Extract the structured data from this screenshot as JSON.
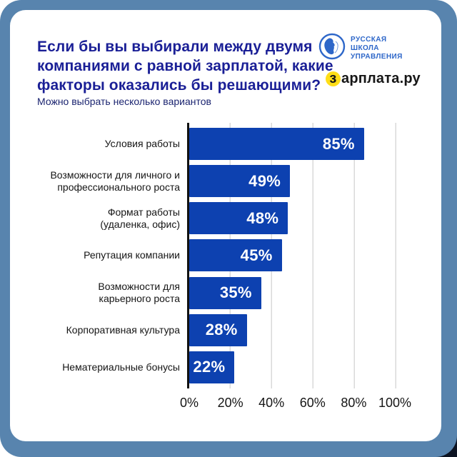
{
  "colors": {
    "frame_blue": "#5884ae",
    "shadow_dark": "#0c1322",
    "title_navy": "#1a1f96",
    "subtitle_navy": "#1b2470",
    "bar_blue": "#0d41b0",
    "rsu_blue": "#2e67c9",
    "yellow": "#ffde17",
    "grid": "#d9d9d9"
  },
  "header": {
    "title": "Если бы вы выбирали между двумя\nкомпаниями с равной зарплатой, какие\nфакторы оказались бы решающими?",
    "subtitle": "Можно выбрать несколько вариантов"
  },
  "logos": {
    "rsu": {
      "icon": "rsu-emblem-icon",
      "name_lines": "РУССКАЯ\nШКОЛА\nУПРАВЛЕНИЯ"
    },
    "zarplata": {
      "first_letter": "з",
      "rest": "арплата.ру"
    }
  },
  "chart_data": {
    "type": "bar",
    "orientation": "horizontal",
    "title": "Если бы вы выбирали между двумя компаниями с равной зарплатой, какие факторы оказались бы решающими?",
    "subtitle": "Можно выбрать несколько вариантов",
    "categories": [
      "Условия работы",
      "Возможности для личного и\nпрофессионального роста",
      "Формат работы\n(удаленка, офис)",
      "Репутация компании",
      "Возможности для\nкарьерного роста",
      "Корпоративная культура",
      "Нематериальные бонусы"
    ],
    "values": [
      85,
      49,
      48,
      45,
      35,
      28,
      22
    ],
    "value_labels": [
      "85%",
      "49%",
      "48%",
      "45%",
      "35%",
      "28%",
      "22%"
    ],
    "xlabel": "",
    "ylabel": "",
    "xlim": [
      0,
      100
    ],
    "xticks": [
      "0%",
      "20%",
      "40%",
      "60%",
      "80%",
      "100%"
    ],
    "grid": true,
    "legend": false,
    "bar_color": "#0d41b0"
  }
}
